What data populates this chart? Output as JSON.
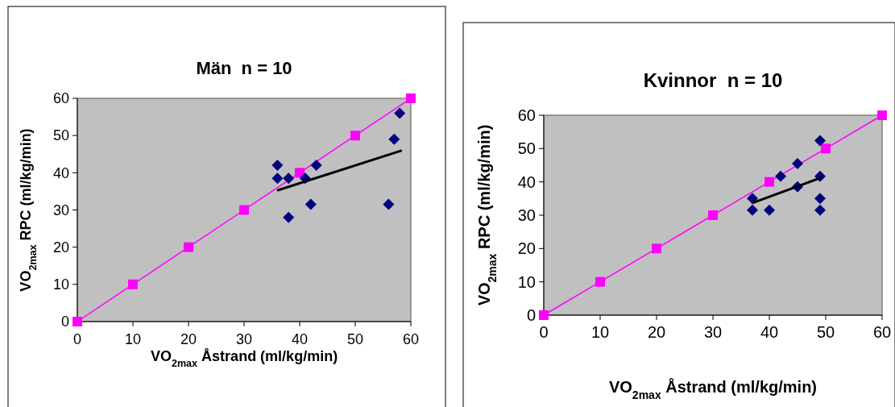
{
  "chart_data": [
    {
      "type": "scatter",
      "title": "Män  n = 10",
      "xlabel": "VO$_{2max}$ Åstrand (ml/kg/min)",
      "ylabel": "VO$_{2max}$ RPC (ml/kg/min)",
      "xlim": [
        0,
        60
      ],
      "ylim": [
        0,
        60
      ],
      "xticks": [
        0,
        10,
        20,
        30,
        40,
        50,
        60
      ],
      "yticks": [
        0,
        10,
        20,
        30,
        40,
        50,
        60
      ],
      "grid": false,
      "series": [
        {
          "type": "line",
          "color": "#ff00ff",
          "marker": "square",
          "x": [
            0,
            10,
            20,
            30,
            40,
            50,
            60
          ],
          "values": [
            0,
            10,
            20,
            30,
            40,
            50,
            60
          ]
        },
        {
          "type": "scatter",
          "color": "#000080",
          "marker": "diamond",
          "x": [
            36,
            36,
            38,
            41,
            43,
            38,
            42,
            56,
            57,
            58
          ],
          "values": [
            42,
            38.5,
            38.5,
            38.5,
            42,
            28,
            31.5,
            31.5,
            49,
            56
          ]
        },
        {
          "type": "line",
          "color": "#000000",
          "marker": "none",
          "x": [
            36.1,
            58.2
          ],
          "values": [
            35.3,
            45.9
          ]
        }
      ]
    },
    {
      "type": "scatter",
      "title": "Kvinnor  n = 10",
      "xlabel": "VO$_{2max}$ Åstrand (ml/kg/min)",
      "ylabel": "VO$_{2max}$ RPC (ml/kg/min)",
      "xlim": [
        0,
        60
      ],
      "ylim": [
        0,
        60
      ],
      "xticks": [
        0,
        10,
        20,
        30,
        40,
        50,
        60
      ],
      "yticks": [
        0,
        10,
        20,
        30,
        40,
        50,
        60
      ],
      "grid": false,
      "series": [
        {
          "type": "line",
          "color": "#ff00ff",
          "marker": "square",
          "x": [
            0,
            10,
            20,
            30,
            40,
            50,
            60
          ],
          "values": [
            0,
            10,
            20,
            30,
            40,
            50,
            60
          ]
        },
        {
          "type": "scatter",
          "color": "#000080",
          "marker": "diamond",
          "x": [
            37,
            37,
            40,
            42,
            45,
            45,
            49,
            49,
            49,
            49
          ],
          "values": [
            31.5,
            35,
            31.5,
            41.7,
            45.5,
            38.5,
            52.4,
            41.7,
            35,
            31.5
          ]
        },
        {
          "type": "line",
          "color": "#000000",
          "marker": "none",
          "x": [
            37.1,
            49.2
          ],
          "values": [
            33.7,
            41.3
          ]
        }
      ]
    }
  ]
}
